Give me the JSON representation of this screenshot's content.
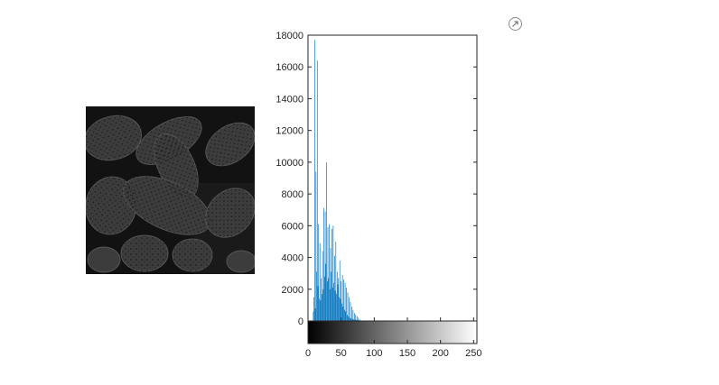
{
  "icons": {
    "export": "export-arrow-icon",
    "image": "pollen-grains-image"
  },
  "colors": {
    "bar": "#0072BD",
    "axis": "#262626",
    "background": "#ffffff"
  },
  "chart_data": {
    "type": "bar",
    "title": "",
    "xlabel": "",
    "ylabel": "",
    "xlim": [
      0,
      255
    ],
    "ylim": [
      0,
      18000
    ],
    "xticks": [
      0,
      50,
      100,
      150,
      200,
      250
    ],
    "yticks": [
      0,
      2000,
      4000,
      6000,
      8000,
      10000,
      12000,
      14000,
      16000,
      18000
    ],
    "colorbar": {
      "colormap": "gray",
      "range": [
        0,
        255
      ]
    },
    "grid": false,
    "x": [
      8,
      9,
      10,
      11,
      12,
      13,
      14,
      15,
      16,
      17,
      18,
      19,
      20,
      21,
      22,
      23,
      24,
      25,
      26,
      27,
      28,
      29,
      30,
      31,
      32,
      33,
      34,
      35,
      36,
      37,
      38,
      39,
      40,
      41,
      42,
      43,
      44,
      45,
      46,
      47,
      48,
      49,
      50,
      51,
      52,
      53,
      54,
      55,
      56,
      57,
      58,
      59,
      60,
      61,
      62,
      63,
      64,
      65,
      66,
      67,
      68,
      69,
      70,
      71,
      72,
      73,
      74,
      75,
      76,
      77,
      78,
      79
    ],
    "values": [
      600,
      1500,
      17700,
      800,
      9400,
      3100,
      16400,
      2200,
      6100,
      1400,
      4900,
      1300,
      2700,
      1700,
      4400,
      2000,
      7100,
      2800,
      6900,
      3600,
      10000,
      2500,
      5900,
      2700,
      6100,
      2000,
      4600,
      3100,
      5800,
      2100,
      6000,
      2400,
      4100,
      1900,
      5000,
      1700,
      3100,
      2300,
      2700,
      1500,
      3800,
      1400,
      2500,
      1100,
      2900,
      900,
      2600,
      700,
      2400,
      600,
      2100,
      400,
      1800,
      300,
      1500,
      200,
      1200,
      150,
      900,
      120,
      700,
      100,
      500,
      80,
      400,
      60,
      300,
      50,
      200,
      40,
      100,
      20
    ]
  }
}
